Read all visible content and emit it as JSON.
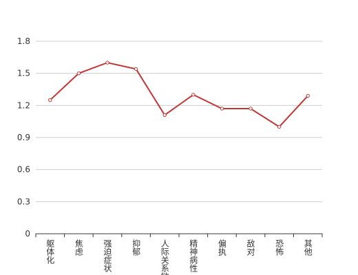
{
  "chart_data": {
    "type": "line",
    "categories": [
      "躯体化",
      "焦虑",
      "强迫症状",
      "抑郁",
      "人际关系敏感",
      "精神病性",
      "偏执",
      "敌对",
      "恐怖",
      "其他"
    ],
    "values": [
      1.25,
      1.5,
      1.6,
      1.54,
      1.11,
      1.3,
      1.17,
      1.17,
      1.0,
      1.29
    ],
    "color": "#c23531",
    "ylim": [
      0,
      1.8
    ],
    "yticks": [
      0,
      0.3,
      0.6,
      0.9,
      1.2,
      1.5,
      1.8
    ],
    "grid": true
  }
}
